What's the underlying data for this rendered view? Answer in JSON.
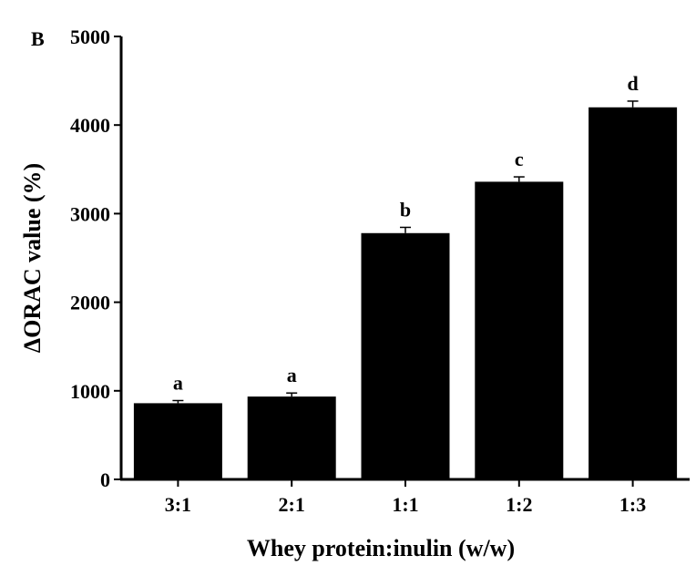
{
  "panel_label": "B",
  "chart_data": {
    "type": "bar",
    "categories": [
      "3:1",
      "2:1",
      "1:1",
      "1:2",
      "1:3"
    ],
    "values": [
      860,
      935,
      2780,
      3360,
      4200
    ],
    "errors": [
      30,
      40,
      65,
      55,
      70
    ],
    "significance_labels": [
      "a",
      "a",
      "b",
      "c",
      "d"
    ],
    "xlabel": "Whey protein:inulin (w/w)",
    "ylabel": "ΔORAC value (%)",
    "ylim": [
      0,
      5000
    ],
    "yticks": [
      0,
      1000,
      2000,
      3000,
      4000,
      5000
    ],
    "grid": false,
    "bar_color": "#000000"
  }
}
